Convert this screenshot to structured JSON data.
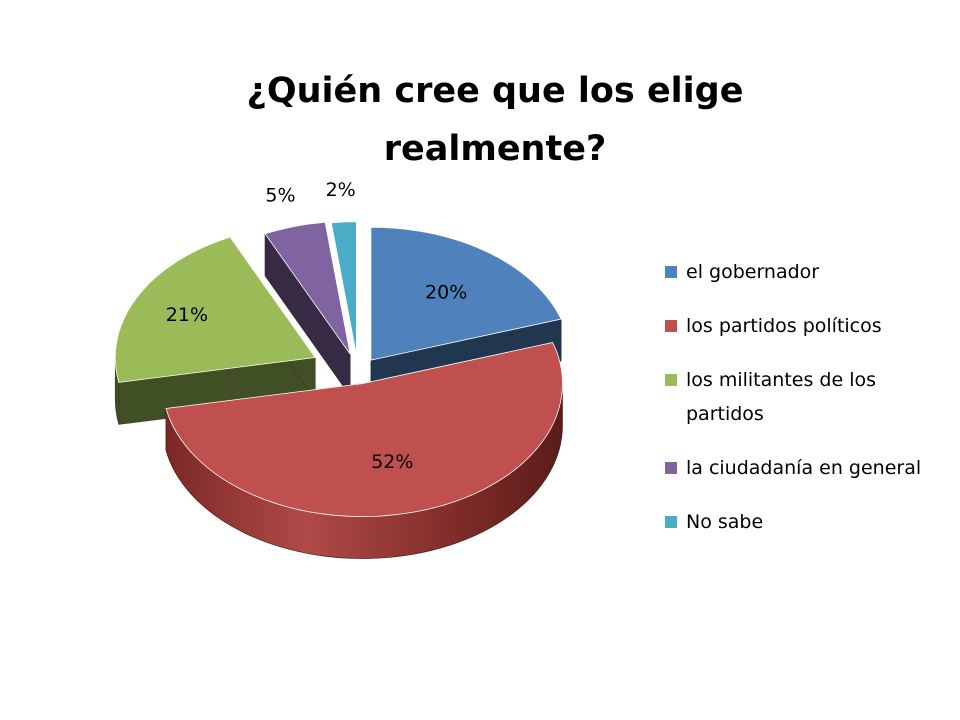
{
  "chart_data": {
    "type": "pie",
    "title_lines": [
      "¿Quién cree que los elige",
      "realmente?"
    ],
    "legend_position": "right",
    "slices": [
      {
        "label": "el gobernador",
        "value": 20,
        "value_label": "20%",
        "color": "#4F81BD"
      },
      {
        "label": "los partidos políticos",
        "value": 52,
        "value_label": "52%",
        "color": "#C0504D"
      },
      {
        "label": "los militantes de los partidos",
        "value": 21,
        "value_label": "21%",
        "color": "#9BBB59"
      },
      {
        "label": "la ciudadanía en general",
        "value": 5,
        "value_label": "5%",
        "color": "#8064A2"
      },
      {
        "label": "No sabe",
        "value": 2,
        "value_label": "2%",
        "color": "#4BACC6"
      }
    ]
  }
}
